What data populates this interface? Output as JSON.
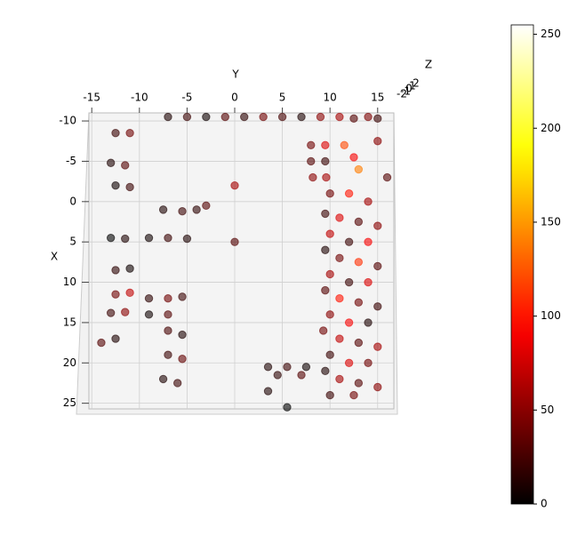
{
  "chart_data": {
    "type": "scatter3d",
    "cmap": "hot",
    "alpha": 0.6,
    "grid": true,
    "xlabel": "X",
    "ylabel": "Y",
    "zlabel": "Z",
    "xlim": [
      -11,
      25.7
    ],
    "xticks": [
      -10,
      -5,
      0,
      5,
      10,
      15,
      20,
      25
    ],
    "ylim": [
      -15.3,
      16.7
    ],
    "yticks": [
      -15,
      -10,
      -5,
      0,
      5,
      10,
      15
    ],
    "zticks": [
      -2,
      -1,
      0,
      1,
      2
    ],
    "clim": [
      0,
      255
    ],
    "cticks": [
      0,
      50,
      100,
      150,
      200,
      250
    ],
    "series": [
      {
        "x": [
          -10.5,
          -10.5,
          -10.5,
          -10.5,
          -10.5,
          -10.5,
          -10.5,
          -10.5,
          -10.5,
          -10.5,
          -10.3,
          -10.5,
          -10.3,
          -8.5,
          -8.5,
          -4.8,
          -4.5,
          -2,
          -1.8,
          4.5,
          4.6,
          8.5,
          8.3,
          11.5,
          11.3,
          13.8,
          13.7,
          17.5,
          17,
          1,
          1.2,
          1,
          0.5,
          4.5,
          4.5,
          4.6,
          12,
          12,
          11.8,
          14,
          14,
          16,
          16.5,
          19,
          19.5,
          22,
          22.5,
          -2,
          5,
          -7,
          -7,
          -5,
          -5,
          -3,
          -3,
          -7,
          -5.5,
          -4,
          -7.5,
          -3,
          -1,
          -1,
          0,
          1.5,
          2,
          2.5,
          3,
          4,
          5,
          5,
          6,
          7,
          7.5,
          8,
          9,
          10,
          10,
          11,
          12,
          12.5,
          13,
          14,
          15,
          15,
          16,
          17,
          17.5,
          18,
          19,
          20,
          20,
          21,
          22,
          22.5,
          23,
          24,
          24,
          20.5,
          20.5,
          20.5,
          21.5,
          21.5,
          23.5,
          25.5
        ],
        "y": [
          -7,
          -5,
          -3,
          -1,
          1,
          3,
          5,
          7,
          9,
          11,
          12.5,
          14,
          15,
          -12.5,
          -11,
          -13,
          -11.5,
          -12.5,
          -11,
          -13,
          -11.5,
          -12.5,
          -11,
          -12.5,
          -11,
          -13,
          -11.5,
          -14,
          -12.5,
          -7.5,
          -5.5,
          -4,
          -3,
          -9,
          -7,
          -5,
          -9,
          -7,
          -5.5,
          -9,
          -7,
          -7,
          -5.5,
          -7,
          -5.5,
          -7.5,
          -6,
          0,
          0,
          8,
          9.5,
          8,
          9.5,
          8.2,
          9.6,
          11.5,
          12.5,
          13,
          15,
          16,
          10,
          12,
          14,
          9.5,
          11,
          13,
          15,
          10,
          12,
          14,
          9.5,
          11,
          13,
          15,
          10,
          12,
          14,
          9.5,
          11,
          13,
          15,
          10,
          12,
          14,
          9.3,
          11,
          13,
          15,
          10,
          12,
          14,
          9.5,
          11,
          13,
          15,
          10,
          12.5,
          3.5,
          5.5,
          7.5,
          4.5,
          7,
          3.5,
          5.5
        ],
        "c": [
          10,
          20,
          5,
          30,
          15,
          40,
          25,
          10,
          50,
          60,
          30,
          45,
          20,
          20,
          40,
          10,
          30,
          5,
          20,
          0,
          10,
          15,
          5,
          40,
          70,
          20,
          50,
          30,
          10,
          10,
          20,
          15,
          30,
          5,
          20,
          10,
          15,
          40,
          20,
          5,
          30,
          25,
          10,
          20,
          35,
          10,
          20,
          60,
          30,
          40,
          80,
          30,
          20,
          50,
          60,
          120,
          90,
          140,
          50,
          30,
          40,
          100,
          60,
          20,
          80,
          30,
          50,
          70,
          20,
          90,
          10,
          40,
          110,
          30,
          60,
          20,
          80,
          30,
          100,
          40,
          20,
          50,
          90,
          10,
          40,
          70,
          30,
          60,
          20,
          80,
          40,
          10,
          60,
          30,
          50,
          20,
          40,
          10,
          20,
          5,
          15,
          30,
          10,
          0
        ]
      }
    ]
  }
}
